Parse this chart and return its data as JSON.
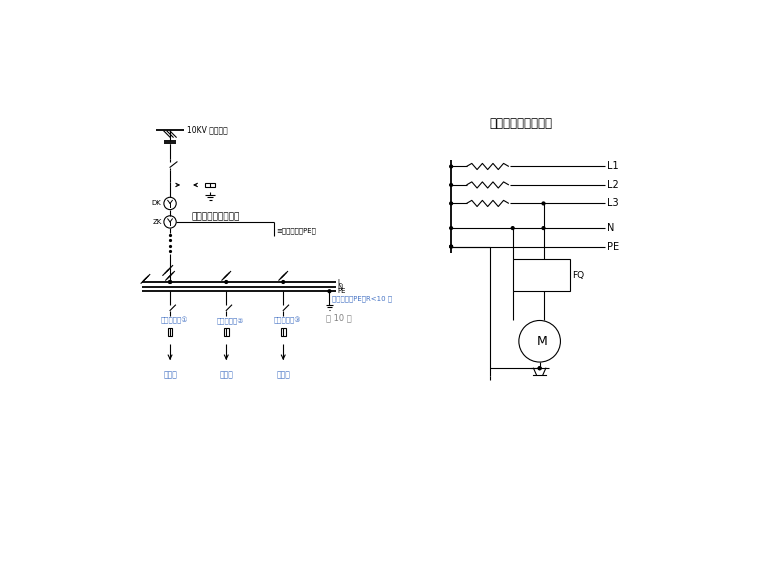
{
  "title_right": "漏电保护器接线方式",
  "left_label_10kv": "10KV 电源进线",
  "left_label_box": "总配电箱（一级箱）",
  "left_label_pe": "≡保护接零（PE）",
  "left_label_dk": "DK",
  "left_label_zk": "ZK",
  "left_label_level2_1": "二级配电箱①",
  "left_label_level2_2": "二级配电箱②",
  "left_label_level2_3": "三级配电箱③",
  "left_label_ground": "重复接地（PE）R<10 欧",
  "left_label_page": "第 10 页",
  "left_label_san1": "三级箱",
  "left_label_san2": "三级箱",
  "left_label_san3": "三级箱",
  "right_labels": [
    "L1",
    "L2",
    "L3",
    "N",
    "PE"
  ],
  "right_label_fq": "FQ",
  "right_label_m": "M",
  "bg_color": "#ffffff",
  "line_color": "#000000",
  "text_color_blue": "#4472c4",
  "text_color_gray": "#808080"
}
